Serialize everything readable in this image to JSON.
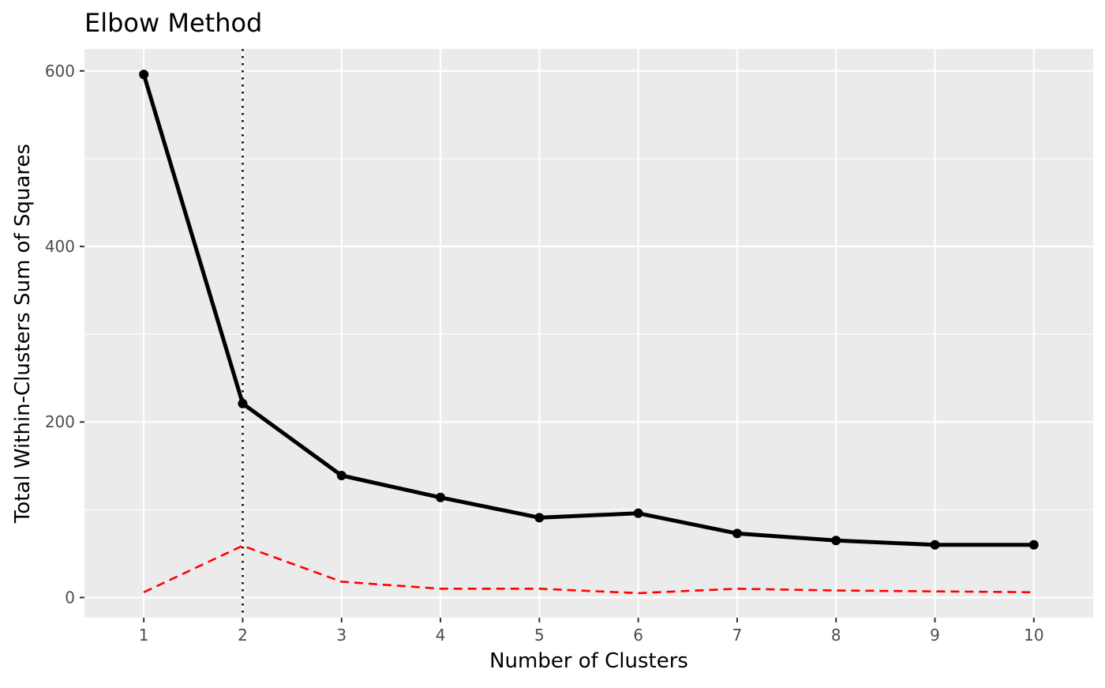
{
  "chart_data": {
    "type": "line",
    "title": "Elbow Method",
    "xlabel": "Number of Clusters",
    "ylabel": "Total Within-Clusters Sum of Squares",
    "x": [
      1,
      2,
      3,
      4,
      5,
      6,
      7,
      8,
      9,
      10
    ],
    "x_ticks": [
      "1",
      "2",
      "3",
      "4",
      "5",
      "6",
      "7",
      "8",
      "9",
      "10"
    ],
    "y_ticks": [
      "0",
      "200",
      "400",
      "600"
    ],
    "xlim": [
      0.4,
      10.6
    ],
    "ylim": [
      -23,
      625
    ],
    "grid": true,
    "panel_background": "#EBEBEB",
    "grid_color": "#FFFFFF",
    "series": [
      {
        "values": [
          596,
          221,
          139,
          114,
          91,
          96,
          73,
          65,
          60,
          60
        ],
        "color": "#000000",
        "style": "solid",
        "markers": true
      },
      {
        "values": [
          6,
          59,
          18,
          10,
          10,
          5,
          10,
          8,
          7,
          6
        ],
        "color": "#FF0000",
        "style": "dashed",
        "markers": false
      }
    ],
    "vline": {
      "x": 2,
      "color": "#000000",
      "style": "dotted"
    }
  }
}
